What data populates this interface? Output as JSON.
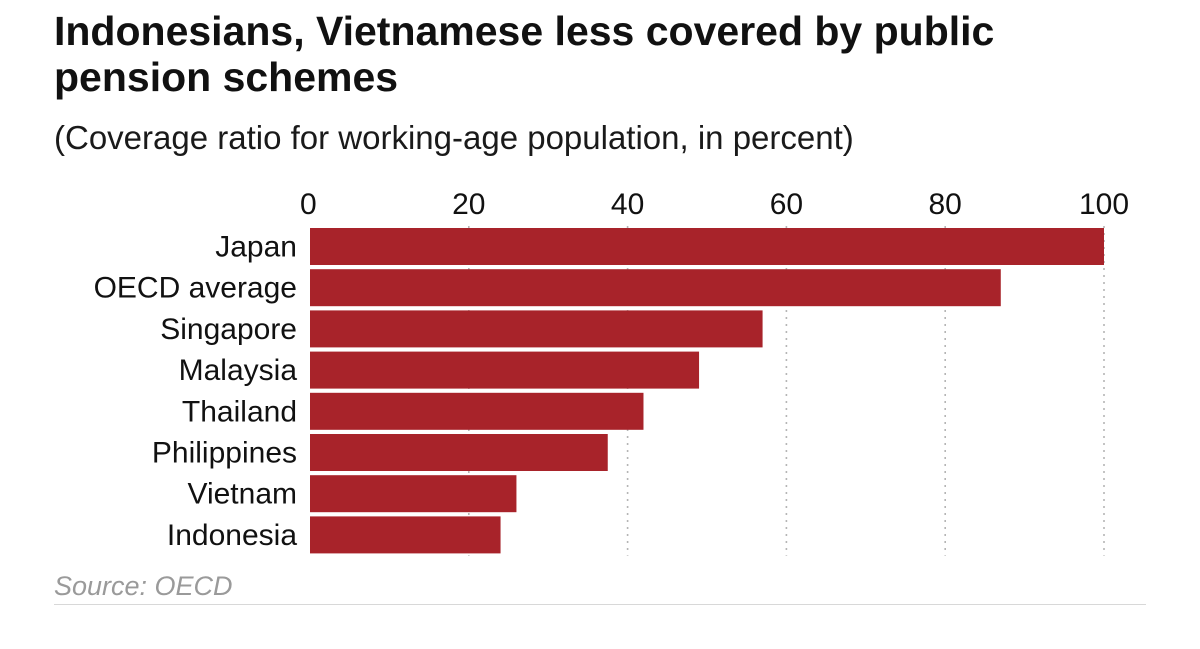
{
  "chart_data": {
    "type": "bar",
    "orientation": "horizontal",
    "title": "Indonesians, Vietnamese less covered by public pension schemes",
    "subtitle": "(Coverage ratio for working-age population, in percent)",
    "categories": [
      "Japan",
      "OECD average",
      "Singapore",
      "Malaysia",
      "Thailand",
      "Philippines",
      "Vietnam",
      "Indonesia"
    ],
    "values": [
      100,
      87,
      57,
      49,
      42,
      37.5,
      26,
      24
    ],
    "xlim": [
      0,
      100
    ],
    "xticks": [
      0,
      20,
      40,
      60,
      80,
      100
    ],
    "tick_position": "top",
    "grid": "vertical dotted",
    "legend": "none",
    "bar_color": "#a8232a",
    "source": "Source: OECD"
  }
}
